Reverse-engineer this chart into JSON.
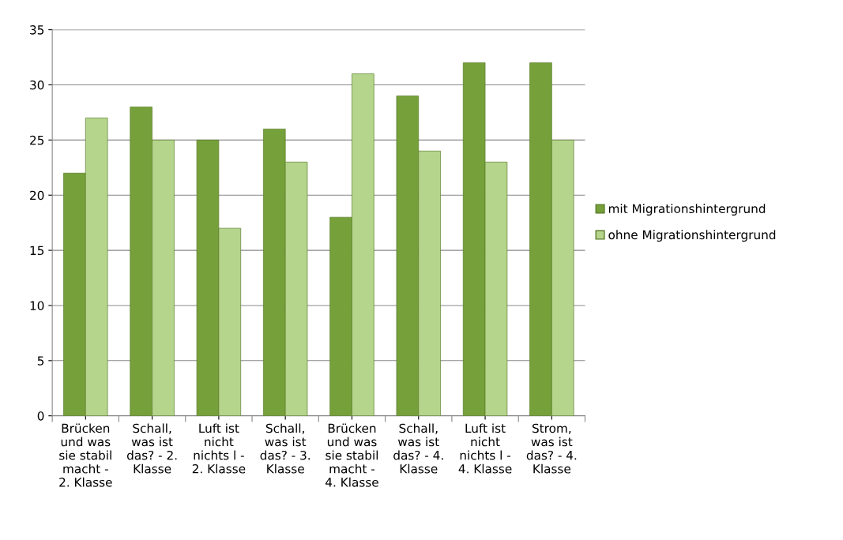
{
  "chart_data": {
    "type": "bar",
    "categories": [
      "Brücken\nund was\nsie stabil\nmacht -\n2. Klasse",
      "Schall,\nwas ist\ndas? - 2.\nKlasse",
      "Luft ist\nnicht\nnichts l -\n2. Klasse",
      "Schall,\nwas ist\ndas? - 3.\nKlasse",
      "Brücken\nund was\nsie stabil\nmacht -\n4. Klasse",
      "Schall,\nwas ist\ndas? - 4.\nKlasse",
      "Luft ist\nnicht\nnichts l -\n4. Klasse",
      "Strom,\nwas ist\ndas? - 4.\nKlasse"
    ],
    "series": [
      {
        "name": "mit Migrationshintergrund",
        "color": "#76a03a",
        "values": [
          22,
          28,
          25,
          26,
          18,
          29,
          32,
          32
        ]
      },
      {
        "name": "ohne Migrationshintergrund",
        "color": "#b6d58c",
        "values": [
          27,
          25,
          17,
          23,
          31,
          24,
          23,
          25
        ]
      }
    ],
    "ylim": [
      0,
      35
    ],
    "yticks": [
      0,
      5,
      10,
      15,
      20,
      25,
      30,
      35
    ],
    "grid": "y",
    "legend": "right"
  }
}
